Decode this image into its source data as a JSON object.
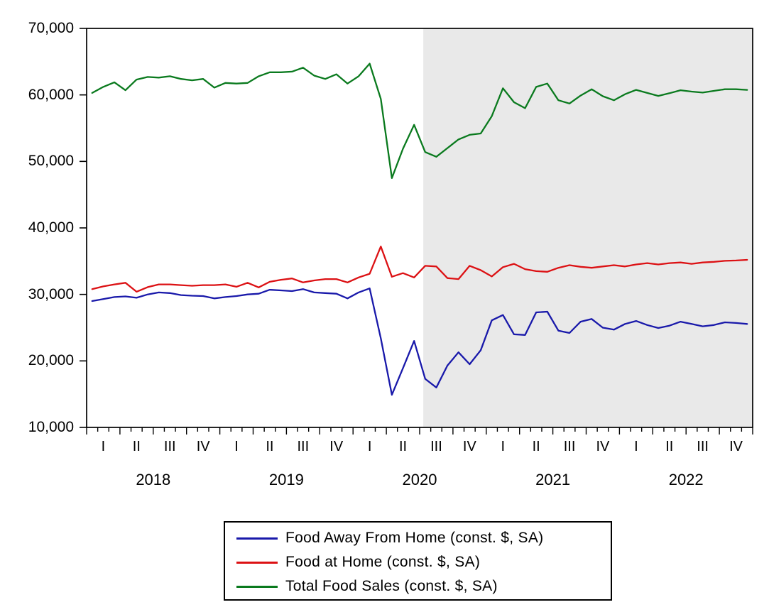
{
  "chart_data": {
    "type": "line",
    "title": "",
    "x_unit": "month",
    "x_start": "2018-01",
    "x_end": "2022-12",
    "years": [
      "2018",
      "2019",
      "2020",
      "2021",
      "2022"
    ],
    "quarter_labels": [
      "I",
      "II",
      "III",
      "IV"
    ],
    "y_axis": {
      "min": 10000,
      "max": 70000,
      "step": 10000,
      "tick_values": [
        70000,
        60000,
        50000,
        40000,
        30000,
        20000,
        10000
      ],
      "tick_labels": [
        "70,000",
        "60,000",
        "50,000",
        "40,000",
        "30,000",
        "20,000",
        "10,000"
      ]
    },
    "grid": "off",
    "legend_position": "bottom",
    "shaded_region": {
      "starts_at": "2020-07",
      "from_month_index": 30.33,
      "to_month_index": 60,
      "color": "#e9e9e9",
      "meaning": "shaded band from July 2020 through end of sample"
    },
    "series": [
      {
        "name": "Food Away From Home (const. $, SA)",
        "color": "#1919aa",
        "values": [
          29000,
          29300,
          29600,
          29700,
          29500,
          30000,
          30300,
          30200,
          29900,
          29800,
          29750,
          29400,
          29600,
          29750,
          30000,
          30100,
          30700,
          30600,
          30500,
          30800,
          30300,
          30200,
          30100,
          29400,
          30300,
          30900,
          23400,
          14900,
          18900,
          23000,
          17300,
          16000,
          19300,
          21300,
          19500,
          21600,
          26100,
          26900,
          24000,
          23900,
          27300,
          27400,
          24550,
          24200,
          25900,
          26300,
          25000,
          24700,
          25550,
          26000,
          25400,
          24950,
          25300,
          25900,
          25550,
          25200,
          25400,
          25800,
          25700,
          25550
        ]
      },
      {
        "name": "Food at Home (const. $, SA)",
        "color": "#dc1114",
        "values": [
          30800,
          31200,
          31500,
          31750,
          30400,
          31100,
          31500,
          31500,
          31400,
          31300,
          31400,
          31400,
          31500,
          31150,
          31750,
          31050,
          31900,
          32200,
          32400,
          31800,
          32100,
          32300,
          32300,
          31800,
          32550,
          33100,
          37200,
          32650,
          33200,
          32550,
          34300,
          34200,
          32450,
          32300,
          34300,
          33650,
          32700,
          34100,
          34600,
          33800,
          33500,
          33400,
          34000,
          34400,
          34150,
          34000,
          34200,
          34400,
          34200,
          34500,
          34700,
          34500,
          34700,
          34800,
          34600,
          34800,
          34900,
          35050,
          35100,
          35200
        ]
      },
      {
        "name": "Total Food Sales (const. $, SA)",
        "color": "#0a7a1e",
        "values": [
          60300,
          61200,
          61900,
          60700,
          62300,
          62700,
          62600,
          62800,
          62400,
          62200,
          62400,
          61100,
          61800,
          61700,
          61800,
          62800,
          63400,
          63400,
          63500,
          64100,
          62900,
          62400,
          63100,
          61700,
          62800,
          64700,
          59400,
          47500,
          51900,
          55500,
          51400,
          50700,
          52000,
          53300,
          54000,
          54200,
          56800,
          61000,
          58900,
          58000,
          61200,
          61700,
          59200,
          58700,
          59900,
          60850,
          59800,
          59200,
          60100,
          60750,
          60300,
          59850,
          60250,
          60700,
          60500,
          60350,
          60600,
          60850,
          60850,
          60750
        ]
      }
    ],
    "axis_color": "#000000"
  },
  "legend": {
    "row_order_note": "blue, red, green top to bottom"
  }
}
